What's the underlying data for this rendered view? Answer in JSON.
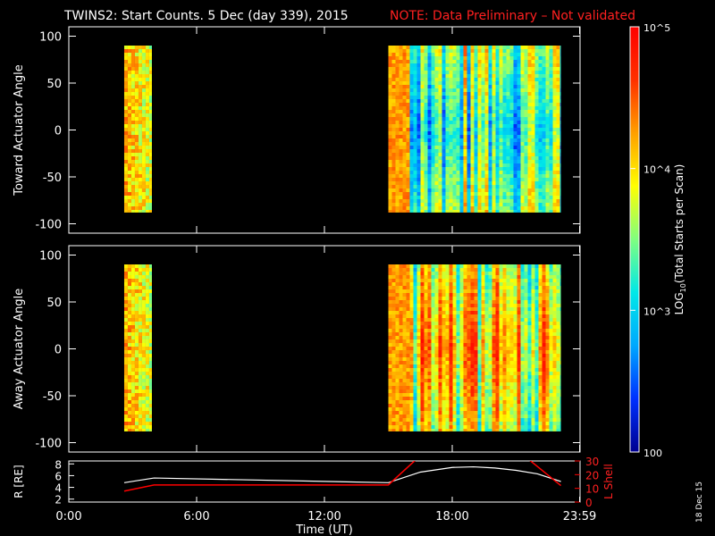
{
  "title": {
    "main": "TWINS2: Start Counts.  5 Dec (day 339), 2015",
    "note": "NOTE: Data Preliminary – Not validated",
    "main_color": "#ffffff",
    "note_color": "#ff2020"
  },
  "stamp": "18 Dec 15",
  "colorbar": {
    "label": "LOG10(Total Starts per Scan)",
    "ticks": [
      {
        "value": 100,
        "label": "100"
      },
      {
        "value": 1000,
        "label": "10^3"
      },
      {
        "value": 10000,
        "label": "10^4"
      },
      {
        "value": 100000,
        "label": "10^5"
      }
    ],
    "scale": "log",
    "range": [
      100,
      100000
    ],
    "colors": [
      "#000090",
      "#0030ff",
      "#00a8ff",
      "#00e8e8",
      "#80ff80",
      "#ffff00",
      "#ffa000",
      "#ff3000",
      "#ff0000"
    ]
  },
  "chart_data": [
    {
      "type": "heatmap",
      "ylabel": "Toward Actuator Angle",
      "xlim": [
        0,
        24
      ],
      "ylim": [
        -110,
        110
      ],
      "yticks": [
        "100",
        "50",
        "0",
        "-50",
        "-100"
      ],
      "ytick_values": [
        100,
        50,
        0,
        -50,
        -100
      ],
      "data_blocks": [
        {
          "t_start": 2.6,
          "t_end": 3.9,
          "angle_min": -88,
          "angle_max": 90
        },
        {
          "t_start": 15.0,
          "t_end": 23.1,
          "angle_min": -88,
          "angle_max": 90
        }
      ]
    },
    {
      "type": "heatmap",
      "ylabel": "Away Actuator Angle",
      "xlim": [
        0,
        24
      ],
      "ylim": [
        -110,
        110
      ],
      "yticks": [
        "100",
        "50",
        "0",
        "-50",
        "-100"
      ],
      "ytick_values": [
        100,
        50,
        0,
        -50,
        -100
      ],
      "data_blocks": [
        {
          "t_start": 2.6,
          "t_end": 3.9,
          "angle_min": -88,
          "angle_max": 90
        },
        {
          "t_start": 15.0,
          "t_end": 23.1,
          "angle_min": -88,
          "angle_max": 90
        }
      ]
    },
    {
      "type": "line",
      "ylabel": "R [RE]",
      "y2label": "L Shell",
      "xlabel": "Time (UT)",
      "xlim": [
        0,
        24
      ],
      "ylim": [
        1.5,
        8.5
      ],
      "y2lim": [
        0,
        30
      ],
      "yticks": [
        "8",
        "6",
        "4",
        "2"
      ],
      "ytick_values": [
        8,
        6,
        4,
        2
      ],
      "y2ticks": [
        "30",
        "20",
        "10",
        "0"
      ],
      "y2tick_values": [
        30,
        20,
        10,
        0
      ],
      "xticks": [
        "0:00",
        "6:00",
        "12:00",
        "18:00",
        "23:59"
      ],
      "xtick_values": [
        0,
        6,
        12,
        18,
        23.98
      ],
      "series": [
        {
          "color": "#ffffff",
          "axis": "left",
          "x": [
            2.6,
            4.0,
            15.0,
            16.5,
            18.0,
            19.0,
            20.0,
            21.0,
            22.0,
            23.1
          ],
          "y": [
            4.8,
            5.6,
            4.8,
            6.6,
            7.4,
            7.5,
            7.3,
            6.9,
            6.3,
            5.0
          ]
        },
        {
          "color": "#ff0000",
          "axis": "right",
          "segments": [
            {
              "x": [
                2.6,
                4.0,
                15.0,
                16.3
              ],
              "y": [
                8.0,
                12.5,
                12.5,
                31.0
              ]
            },
            {
              "x": [
                21.6,
                23.1
              ],
              "y": [
                31.0,
                12.0
              ]
            }
          ]
        }
      ]
    }
  ]
}
